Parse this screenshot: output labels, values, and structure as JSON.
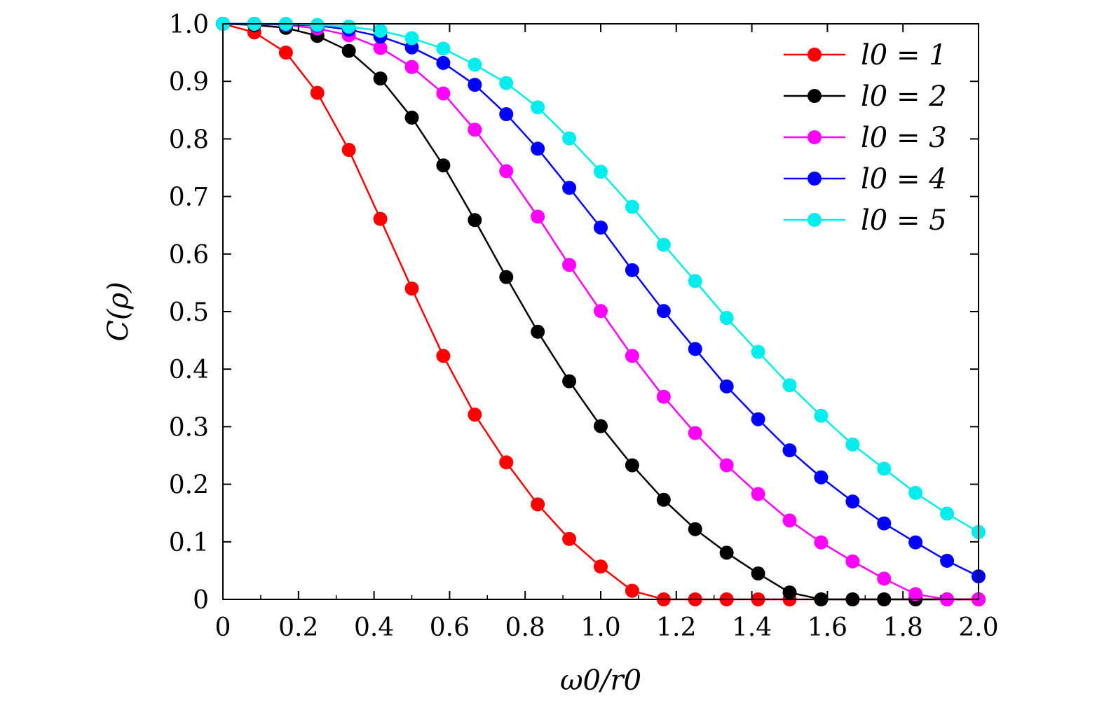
{
  "chart_data": {
    "type": "line",
    "xlabel": "ω0/r0",
    "ylabel": "C(ρ)",
    "xlim": [
      0,
      2.0
    ],
    "ylim": [
      0,
      1.0
    ],
    "x_ticks": [
      "0",
      "0.2",
      "0.4",
      "0.6",
      "0.8",
      "1.0",
      "1.2",
      "1.4",
      "1.6",
      "1.8",
      "2.0"
    ],
    "y_ticks": [
      "0",
      "0.1",
      "0.2",
      "0.3",
      "0.4",
      "0.5",
      "0.6",
      "0.7",
      "0.8",
      "0.9",
      "1.0"
    ],
    "legend_position": "top-right",
    "grid": false,
    "x": [
      0.0,
      0.0833,
      0.1667,
      0.25,
      0.3333,
      0.4167,
      0.5,
      0.5833,
      0.6667,
      0.75,
      0.8333,
      0.9167,
      1.0,
      1.0833,
      1.1667,
      1.25,
      1.3333,
      1.4167,
      1.5,
      1.5833,
      1.6667,
      1.75,
      1.8333,
      1.9167,
      2.0
    ],
    "series": [
      {
        "name": "l0 = 1",
        "color": "#ff0000",
        "values": [
          1.0,
          0.985,
          0.95,
          0.88,
          0.781,
          0.661,
          0.54,
          0.423,
          0.321,
          0.238,
          0.165,
          0.105,
          0.057,
          0.015,
          0.0,
          0.0,
          0.0,
          0.0,
          0.0,
          0.0,
          0.0,
          0.0,
          0.0,
          0.0,
          0.0
        ]
      },
      {
        "name": "l0 = 2",
        "color": "#000000",
        "values": [
          1.0,
          0.998,
          0.993,
          0.979,
          0.953,
          0.905,
          0.837,
          0.754,
          0.659,
          0.56,
          0.465,
          0.379,
          0.301,
          0.233,
          0.173,
          0.122,
          0.081,
          0.045,
          0.012,
          0.0,
          0.0,
          0.0,
          0.0,
          0.0,
          0.0
        ]
      },
      {
        "name": "l0 = 3",
        "color": "#ff00ff",
        "values": [
          1.0,
          1.0,
          0.998,
          0.992,
          0.98,
          0.958,
          0.925,
          0.879,
          0.816,
          0.744,
          0.665,
          0.581,
          0.501,
          0.423,
          0.352,
          0.289,
          0.233,
          0.183,
          0.137,
          0.099,
          0.066,
          0.036,
          0.009,
          0.0,
          0.0
        ]
      },
      {
        "name": "l0 = 4",
        "color": "#0000ff",
        "values": [
          1.0,
          1.0,
          0.999,
          0.997,
          0.99,
          0.978,
          0.959,
          0.932,
          0.894,
          0.843,
          0.783,
          0.715,
          0.646,
          0.572,
          0.501,
          0.435,
          0.37,
          0.313,
          0.259,
          0.212,
          0.17,
          0.132,
          0.099,
          0.067,
          0.04
        ]
      },
      {
        "name": "l0 = 5",
        "color": "#00eeee",
        "values": [
          1.0,
          1.0,
          1.0,
          0.998,
          0.995,
          0.988,
          0.975,
          0.957,
          0.929,
          0.897,
          0.855,
          0.801,
          0.743,
          0.682,
          0.616,
          0.553,
          0.489,
          0.43,
          0.372,
          0.319,
          0.269,
          0.227,
          0.185,
          0.149,
          0.117
        ]
      }
    ]
  }
}
